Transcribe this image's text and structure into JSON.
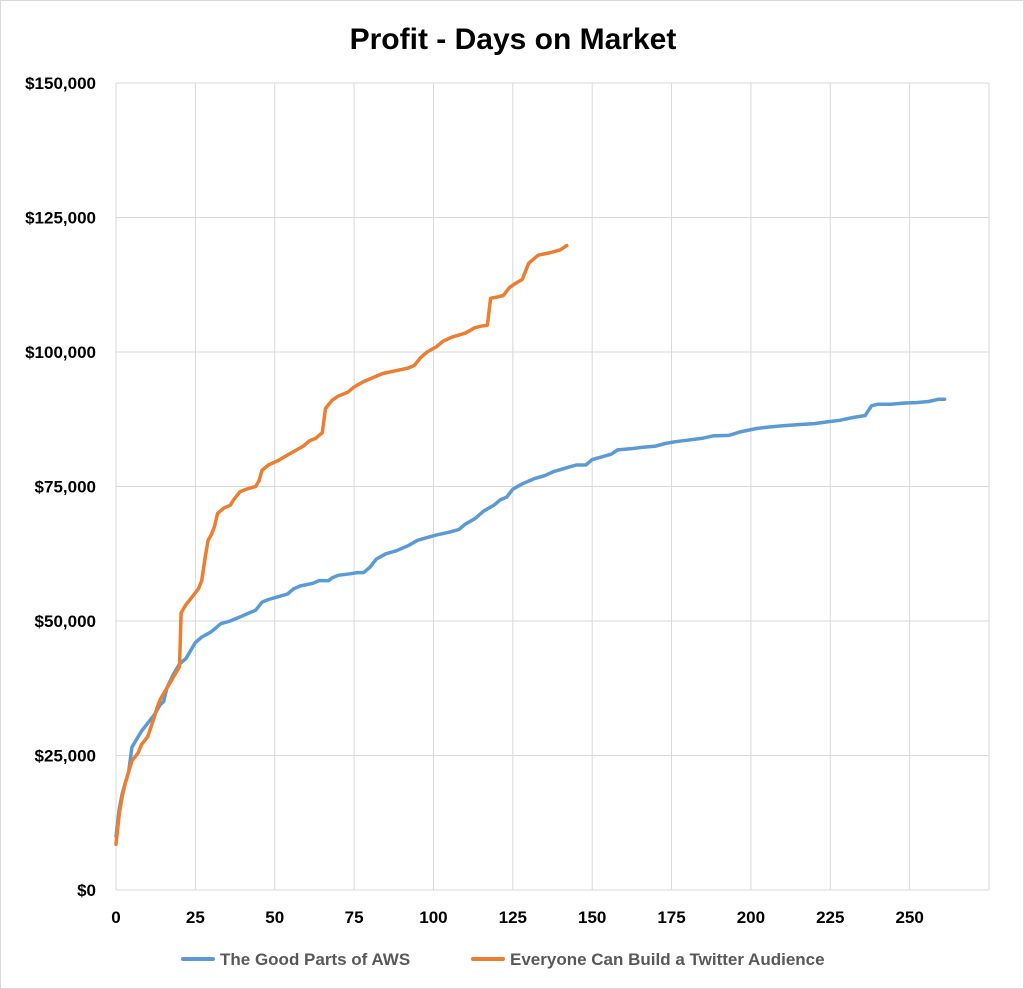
{
  "chart_data": {
    "type": "line",
    "title": "Profit - Days on Market",
    "xlabel": "",
    "ylabel": "",
    "xlim": [
      0,
      275
    ],
    "ylim": [
      0,
      150000
    ],
    "x_ticks": [
      0,
      25,
      50,
      75,
      100,
      125,
      150,
      175,
      200,
      225,
      250
    ],
    "x_tick_labels": [
      "0",
      "25",
      "50",
      "75",
      "100",
      "125",
      "150",
      "175",
      "200",
      "225",
      "250"
    ],
    "y_ticks": [
      0,
      25000,
      50000,
      75000,
      100000,
      125000,
      150000
    ],
    "y_tick_labels": [
      "$0",
      "$25,000",
      "$50,000",
      "$75,000",
      "$100,000",
      "$125,000",
      "$150,000"
    ],
    "grid": {
      "vertical": true,
      "horizontal": true
    },
    "legend_position": "bottom",
    "series": [
      {
        "name": "The Good Parts of AWS",
        "color": "#5b9bd5",
        "points": [
          [
            0,
            10000
          ],
          [
            1,
            15000
          ],
          [
            2,
            18000
          ],
          [
            3,
            20000
          ],
          [
            4,
            22000
          ],
          [
            5,
            26500
          ],
          [
            6,
            27500
          ],
          [
            8,
            29500
          ],
          [
            10,
            31000
          ],
          [
            12,
            32500
          ],
          [
            14,
            34500
          ],
          [
            15,
            35000
          ],
          [
            16,
            37500
          ],
          [
            18,
            40000
          ],
          [
            20,
            42000
          ],
          [
            22,
            43000
          ],
          [
            24,
            45000
          ],
          [
            25,
            46000
          ],
          [
            27,
            47000
          ],
          [
            30,
            48000
          ],
          [
            31,
            48500
          ],
          [
            33,
            49500
          ],
          [
            36,
            50000
          ],
          [
            40,
            51000
          ],
          [
            42,
            51500
          ],
          [
            44,
            52000
          ],
          [
            46,
            53500
          ],
          [
            48,
            54000
          ],
          [
            51,
            54500
          ],
          [
            54,
            55000
          ],
          [
            56,
            56000
          ],
          [
            58,
            56500
          ],
          [
            62,
            57000
          ],
          [
            64,
            57500
          ],
          [
            67,
            57500
          ],
          [
            68,
            58000
          ],
          [
            70,
            58500
          ],
          [
            74,
            58800
          ],
          [
            76,
            59000
          ],
          [
            78,
            59000
          ],
          [
            80,
            60000
          ],
          [
            82,
            61500
          ],
          [
            85,
            62500
          ],
          [
            88,
            63000
          ],
          [
            92,
            64000
          ],
          [
            95,
            65000
          ],
          [
            98,
            65500
          ],
          [
            101,
            66000
          ],
          [
            105,
            66500
          ],
          [
            108,
            67000
          ],
          [
            110,
            68000
          ],
          [
            113,
            69000
          ],
          [
            116,
            70500
          ],
          [
            119,
            71500
          ],
          [
            121,
            72500
          ],
          [
            123,
            73000
          ],
          [
            125,
            74500
          ],
          [
            128,
            75500
          ],
          [
            132,
            76500
          ],
          [
            135,
            77000
          ],
          [
            138,
            77800
          ],
          [
            142,
            78500
          ],
          [
            145,
            79000
          ],
          [
            148,
            79000
          ],
          [
            150,
            80000
          ],
          [
            153,
            80500
          ],
          [
            156,
            81000
          ],
          [
            158,
            81800
          ],
          [
            162,
            82000
          ],
          [
            166,
            82300
          ],
          [
            170,
            82500
          ],
          [
            173,
            83000
          ],
          [
            176,
            83300
          ],
          [
            180,
            83600
          ],
          [
            185,
            84000
          ],
          [
            188,
            84400
          ],
          [
            193,
            84500
          ],
          [
            197,
            85200
          ],
          [
            202,
            85800
          ],
          [
            205,
            86000
          ],
          [
            210,
            86300
          ],
          [
            215,
            86500
          ],
          [
            220,
            86700
          ],
          [
            224,
            87000
          ],
          [
            228,
            87300
          ],
          [
            232,
            87800
          ],
          [
            236,
            88200
          ],
          [
            238,
            90000
          ],
          [
            240,
            90300
          ],
          [
            244,
            90300
          ],
          [
            248,
            90500
          ],
          [
            252,
            90600
          ],
          [
            256,
            90800
          ],
          [
            259,
            91200
          ],
          [
            261,
            91200
          ]
        ]
      },
      {
        "name": "Everyone Can Build a Twitter Audience",
        "color": "#ed7d31",
        "points": [
          [
            0,
            8500
          ],
          [
            1,
            14000
          ],
          [
            2,
            17500
          ],
          [
            3,
            20000
          ],
          [
            4,
            22000
          ],
          [
            5,
            24000
          ],
          [
            7,
            25500
          ],
          [
            8,
            27000
          ],
          [
            10,
            28500
          ],
          [
            12,
            32000
          ],
          [
            13,
            34000
          ],
          [
            14,
            35500
          ],
          [
            16,
            37500
          ],
          [
            18,
            39500
          ],
          [
            19,
            40500
          ],
          [
            20,
            41500
          ],
          [
            20.5,
            51500
          ],
          [
            22,
            53000
          ],
          [
            24,
            54500
          ],
          [
            26,
            56000
          ],
          [
            27,
            57500
          ],
          [
            28,
            61500
          ],
          [
            29,
            65000
          ],
          [
            30,
            66000
          ],
          [
            31,
            67500
          ],
          [
            32,
            70000
          ],
          [
            34,
            71000
          ],
          [
            36,
            71500
          ],
          [
            37,
            72500
          ],
          [
            39,
            74000
          ],
          [
            41,
            74500
          ],
          [
            44,
            75000
          ],
          [
            45,
            76000
          ],
          [
            46,
            78000
          ],
          [
            48,
            79000
          ],
          [
            51,
            79800
          ],
          [
            53,
            80500
          ],
          [
            56,
            81500
          ],
          [
            59,
            82500
          ],
          [
            61,
            83500
          ],
          [
            63,
            84000
          ],
          [
            65,
            85000
          ],
          [
            66,
            89500
          ],
          [
            68,
            91000
          ],
          [
            70,
            91800
          ],
          [
            73,
            92500
          ],
          [
            75,
            93500
          ],
          [
            78,
            94500
          ],
          [
            80,
            95000
          ],
          [
            84,
            96000
          ],
          [
            88,
            96500
          ],
          [
            92,
            97000
          ],
          [
            94,
            97500
          ],
          [
            96,
            99000
          ],
          [
            98,
            100000
          ],
          [
            101,
            101000
          ],
          [
            103,
            102000
          ],
          [
            106,
            102800
          ],
          [
            110,
            103500
          ],
          [
            113,
            104500
          ],
          [
            115,
            104800
          ],
          [
            117,
            105000
          ],
          [
            118,
            110000
          ],
          [
            120,
            110200
          ],
          [
            122,
            110500
          ],
          [
            124,
            112000
          ],
          [
            126,
            112800
          ],
          [
            128,
            113500
          ],
          [
            130,
            116500
          ],
          [
            133,
            118000
          ],
          [
            137,
            118500
          ],
          [
            140,
            119000
          ],
          [
            142,
            119800
          ]
        ]
      }
    ]
  }
}
